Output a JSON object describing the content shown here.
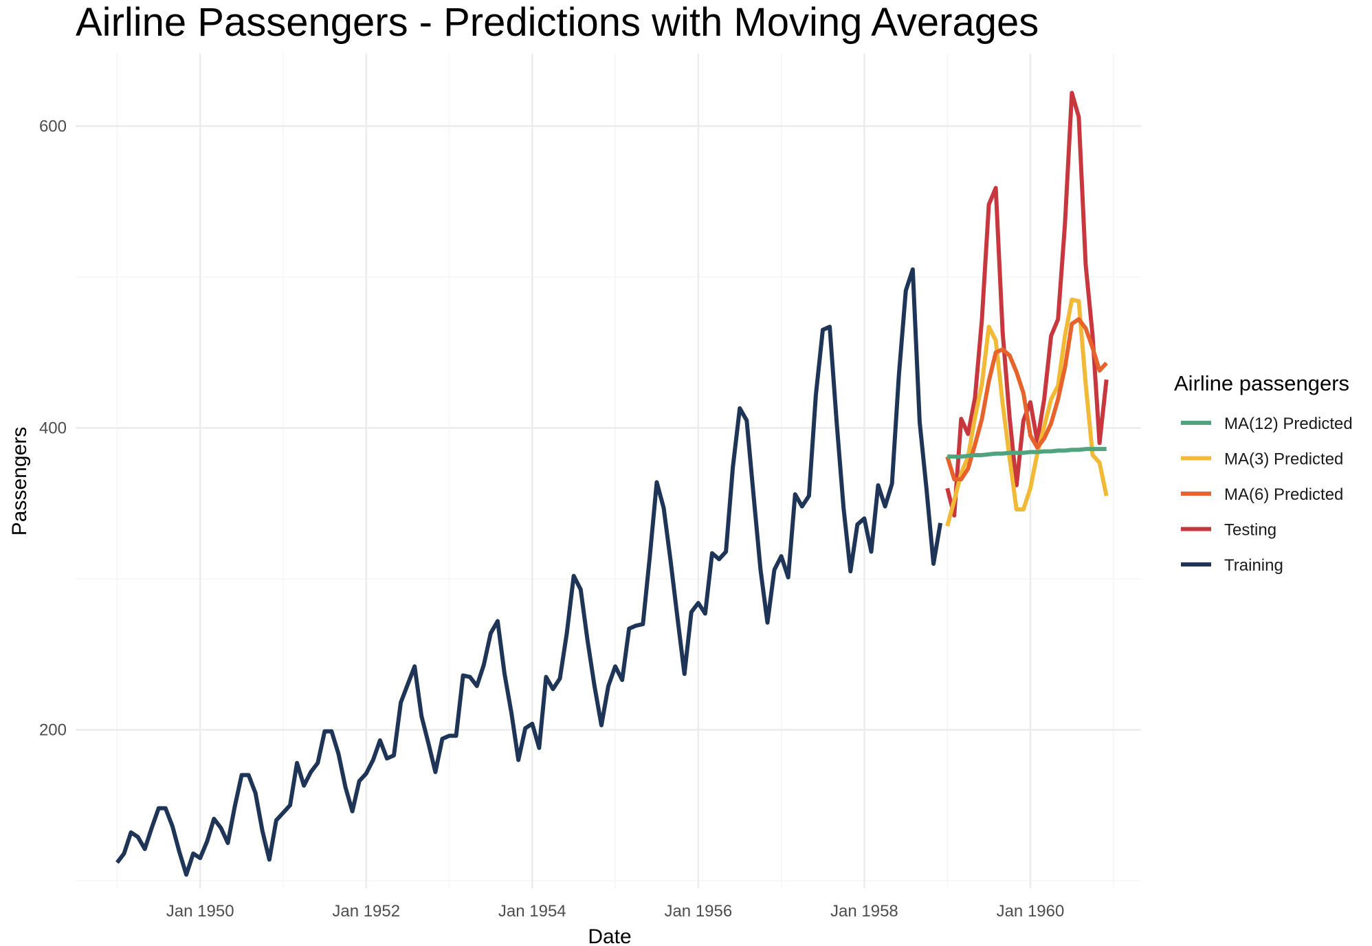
{
  "chart_data": {
    "type": "line",
    "title": "Airline Passengers - Predictions with Moving Averages",
    "xlabel": "Date",
    "ylabel": "Passengers",
    "x_ticks": [
      "Jan 1950",
      "Jan 1952",
      "Jan 1954",
      "Jan 1956",
      "Jan 1958",
      "Jan 1960"
    ],
    "y_ticks": [
      200,
      400,
      600
    ],
    "ylim": [
      95,
      648
    ],
    "xlim": [
      "1948-07",
      "1961-05"
    ],
    "grid": true,
    "legend": {
      "title": "Airline passengers",
      "position": "right",
      "entries": [
        "MA(12) Predicted",
        "MA(3) Predicted",
        "MA(6) Predicted",
        "Testing",
        "Training"
      ]
    },
    "series": [
      {
        "name": "Training",
        "color": "#1f3557",
        "start": "1949-01",
        "values": [
          112,
          118,
          132,
          129,
          121,
          135,
          148,
          148,
          136,
          119,
          104,
          118,
          115,
          126,
          141,
          135,
          125,
          149,
          170,
          170,
          158,
          133,
          114,
          140,
          145,
          150,
          178,
          163,
          172,
          178,
          199,
          199,
          184,
          162,
          146,
          166,
          171,
          180,
          193,
          181,
          183,
          218,
          230,
          242,
          209,
          191,
          172,
          194,
          196,
          196,
          236,
          235,
          229,
          243,
          264,
          272,
          237,
          211,
          180,
          201,
          204,
          188,
          235,
          227,
          234,
          264,
          302,
          293,
          259,
          229,
          203,
          229,
          242,
          233,
          267,
          269,
          270,
          315,
          364,
          347,
          312,
          274,
          237,
          278,
          284,
          277,
          317,
          313,
          318,
          374,
          413,
          405,
          355,
          306,
          271,
          306,
          315,
          301,
          356,
          348,
          355,
          422,
          465,
          467,
          404,
          347,
          305,
          336,
          340,
          318,
          362,
          348,
          363,
          435,
          491,
          505,
          404,
          359,
          310,
          337
        ]
      },
      {
        "name": "Testing",
        "color": "#c8373e",
        "start": "1959-01",
        "values": [
          360,
          342,
          406,
          396,
          420,
          472,
          548,
          559,
          463,
          407,
          362,
          405,
          417,
          391,
          419,
          461,
          472,
          535,
          622,
          606,
          508,
          461,
          390,
          432
        ]
      },
      {
        "name": "MA(3) Predicted",
        "color": "#f2b936",
        "start": "1959-01",
        "values": [
          335,
          352,
          370,
          381,
          407,
          429,
          467,
          458,
          416,
          380,
          346,
          346,
          360,
          383,
          401,
          419,
          428,
          461,
          485,
          484,
          429,
          382,
          377,
          355
        ]
      },
      {
        "name": "MA(6) Predicted",
        "color": "#e8632b",
        "start": "1959-01",
        "values": [
          381,
          366,
          366,
          373,
          389,
          406,
          431,
          450,
          452,
          448,
          437,
          423,
          395,
          387,
          393,
          403,
          419,
          440,
          469,
          472,
          466,
          453,
          438,
          443
        ]
      },
      {
        "name": "MA(12) Predicted",
        "color": "#4fa37d",
        "start": "1959-01",
        "values": [
          381,
          381,
          381,
          381.5,
          382,
          382,
          382.5,
          383,
          383,
          383.5,
          383.5,
          383.5,
          384,
          384,
          384.5,
          384.5,
          385,
          385,
          385.5,
          385.5,
          386,
          386,
          386,
          386
        ]
      }
    ]
  }
}
